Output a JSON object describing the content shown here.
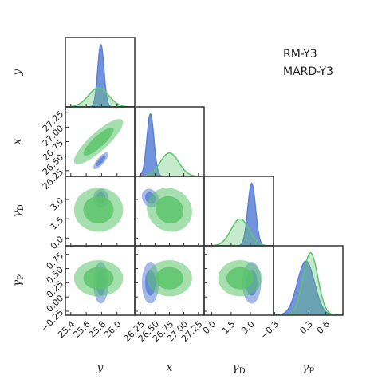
{
  "chart_data": {
    "type": "corner",
    "parameters": [
      {
        "label": "y",
        "lim": [
          25.33,
          26.23
        ],
        "ticks": [
          25.4,
          25.6,
          25.8,
          {
            "value": 26,
            "label": "26.0"
          }
        ]
      },
      {
        "label": "x",
        "lim": [
          26.15,
          27.35
        ],
        "ticks": [
          26.25,
          {
            "value": 26.5,
            "label": "26.50"
          },
          26.75,
          {
            "value": 27,
            "label": "27.00"
          },
          27.25
        ]
      },
      {
        "label": "γ",
        "sub": "D",
        "lim": [
          -0.6,
          4.8
        ],
        "ticks": [
          {
            "value": 0,
            "label": "0.0"
          },
          1.5,
          {
            "value": 3,
            "label": "3.0"
          }
        ]
      },
      {
        "label": "γ",
        "sub": "P",
        "lim": [
          -0.32,
          0.9
        ],
        "ticks": [
          {
            "value": -0.3,
            "label": "−0.3"
          },
          0.3,
          0.6
        ],
        "left_ticks": [
          {
            "value": -0.25,
            "label": "−0.25"
          },
          {
            "value": 0,
            "label": "0.00"
          },
          0.25,
          {
            "value": 0.5,
            "label": "0.50"
          },
          0.75
        ]
      }
    ],
    "series": [
      {
        "name": "RM-Y3",
        "color": "#5b80d6",
        "mean": [
          25.79,
          26.42,
          3.1,
          0.25
        ],
        "sigma": [
          0.04,
          0.06,
          0.3,
          0.15
        ],
        "corr": [
          [
            0.8
          ],
          [
            0.0,
            -0.2
          ],
          [
            0.0,
            0.0,
            0.0
          ]
        ]
      },
      {
        "name": "MARD-Y3",
        "color": "#5cc46c",
        "mean": [
          25.76,
          26.75,
          2.2,
          0.33
        ],
        "sigma": [
          0.13,
          0.16,
          0.7,
          0.13
        ],
        "corr": [
          [
            0.85
          ],
          [
            0.0,
            -0.1
          ],
          [
            0.0,
            0.0,
            0.0
          ]
        ]
      }
    ]
  }
}
